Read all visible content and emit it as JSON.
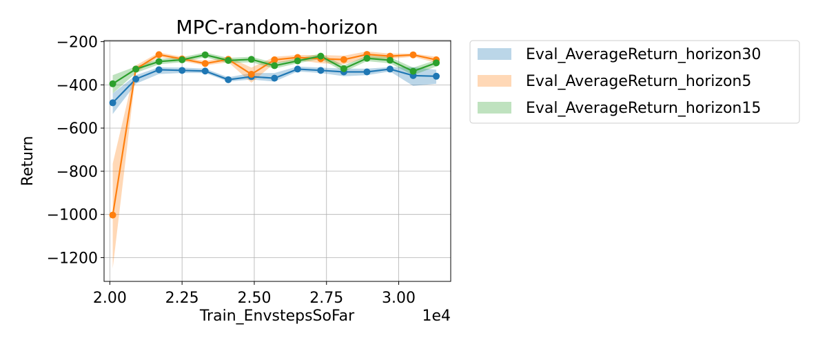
{
  "chart_data": {
    "type": "line",
    "title": "MPC-random-horizon",
    "xlabel": "Train_EnvstepsSoFar",
    "ylabel": "Return",
    "x_offset_label": "1e4",
    "xlim": [
      19800,
      31800
    ],
    "ylim": [
      -1310,
      -195
    ],
    "x_ticks": [
      20000,
      22500,
      25000,
      27500,
      30000
    ],
    "x_tick_labels": [
      "2.00",
      "2.25",
      "2.50",
      "2.75",
      "3.00"
    ],
    "y_ticks": [
      -200,
      -400,
      -600,
      -800,
      -1000,
      -1200
    ],
    "y_tick_labels": [
      "−200",
      "−400",
      "−600",
      "−800",
      "−1000",
      "−1200"
    ],
    "grid": true,
    "legend_position": "outside-top-right",
    "x": [
      20100,
      20900,
      21700,
      22500,
      23300,
      24100,
      24900,
      25700,
      26500,
      27300,
      28100,
      28900,
      29700,
      30500,
      31300
    ],
    "series": [
      {
        "name": "Eval_AverageReturn_horizon30",
        "color": "#1f77b4",
        "fill_color": "#1f77b4",
        "values": [
          -483,
          -373,
          -330,
          -333,
          -336,
          -376,
          -362,
          -369,
          -327,
          -333,
          -340,
          -340,
          -327,
          -357,
          -360
        ],
        "lower": [
          -535,
          -395,
          -350,
          -345,
          -345,
          -385,
          -375,
          -385,
          -338,
          -345,
          -360,
          -355,
          -338,
          -405,
          -395
        ],
        "upper": [
          -440,
          -355,
          -318,
          -320,
          -325,
          -365,
          -345,
          -345,
          -315,
          -320,
          -325,
          -325,
          -318,
          -318,
          -330
        ]
      },
      {
        "name": "Eval_AverageReturn_horizon5",
        "color": "#ff7f0e",
        "fill_color": "#ff7f0e",
        "values": [
          -1003,
          -327,
          -260,
          -280,
          -301,
          -282,
          -351,
          -284,
          -273,
          -279,
          -283,
          -259,
          -267,
          -261,
          -284
        ],
        "lower": [
          -1250,
          -345,
          -270,
          -290,
          -310,
          -295,
          -390,
          -300,
          -285,
          -300,
          -305,
          -275,
          -280,
          -270,
          -298
        ],
        "upper": [
          -765,
          -310,
          -250,
          -270,
          -290,
          -270,
          -320,
          -270,
          -262,
          -262,
          -265,
          -245,
          -255,
          -255,
          -270
        ]
      },
      {
        "name": "Eval_AverageReturn_horizon15",
        "color": "#2ca02c",
        "fill_color": "#2ca02c",
        "values": [
          -395,
          -327,
          -292,
          -284,
          -261,
          -287,
          -282,
          -311,
          -289,
          -267,
          -325,
          -277,
          -286,
          -337,
          -298
        ],
        "lower": [
          -440,
          -345,
          -305,
          -295,
          -272,
          -300,
          -295,
          -325,
          -300,
          -280,
          -340,
          -290,
          -300,
          -355,
          -315
        ],
        "upper": [
          -355,
          -315,
          -280,
          -272,
          -250,
          -275,
          -270,
          -298,
          -278,
          -255,
          -310,
          -265,
          -272,
          -320,
          -285
        ]
      }
    ]
  }
}
